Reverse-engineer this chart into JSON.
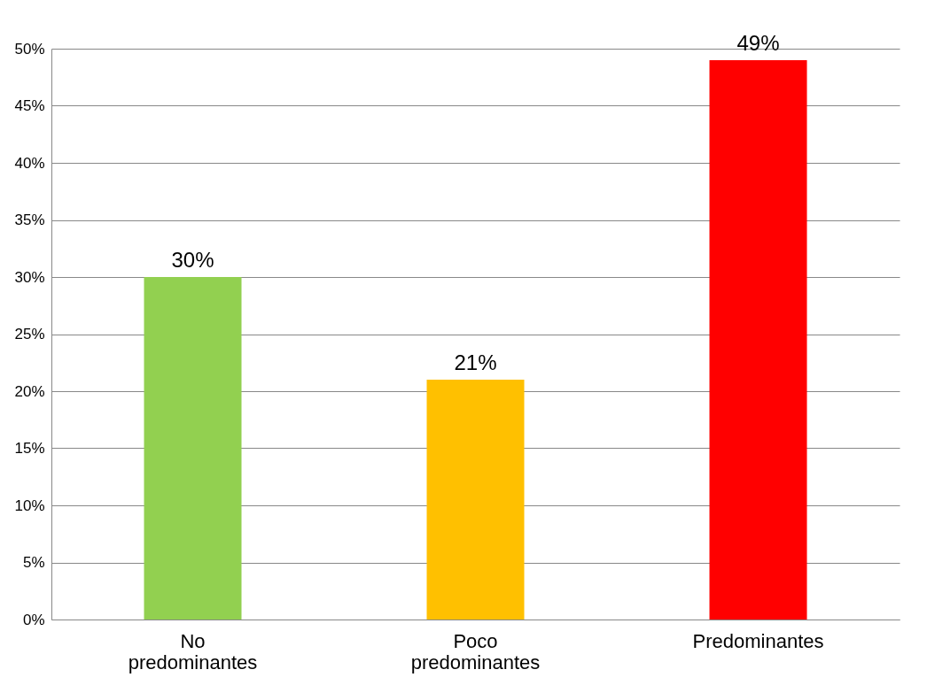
{
  "chart_data": {
    "type": "bar",
    "categories": [
      "No predominantes",
      "Poco predominantes",
      "Predominantes"
    ],
    "values": [
      30,
      21,
      49
    ],
    "colors": [
      "#92d050",
      "#ffc000",
      "#ff0000"
    ],
    "value_labels": [
      "30%",
      "21%",
      "49%"
    ],
    "ylim": [
      0,
      50
    ],
    "yticks": [
      {
        "value": 0,
        "label": "0%"
      },
      {
        "value": 5,
        "label": "5%"
      },
      {
        "value": 10,
        "label": "10%"
      },
      {
        "value": 15,
        "label": "15%"
      },
      {
        "value": 20,
        "label": "20%"
      },
      {
        "value": 25,
        "label": "25%"
      },
      {
        "value": 30,
        "label": "30%"
      },
      {
        "value": 35,
        "label": "35%"
      },
      {
        "value": 40,
        "label": "40%"
      },
      {
        "value": 45,
        "label": "45%"
      },
      {
        "value": 50,
        "label": "50%"
      }
    ],
    "grid": "y"
  }
}
